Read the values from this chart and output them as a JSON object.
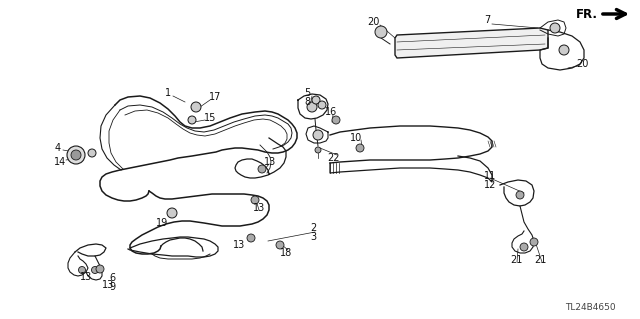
{
  "background_color": "#ffffff",
  "diagram_id": "TL24B4650",
  "line_color": "#1a1a1a",
  "text_color": "#111111",
  "font_size": 7.0,
  "fig_w": 6.4,
  "fig_h": 3.19,
  "dpi": 100
}
